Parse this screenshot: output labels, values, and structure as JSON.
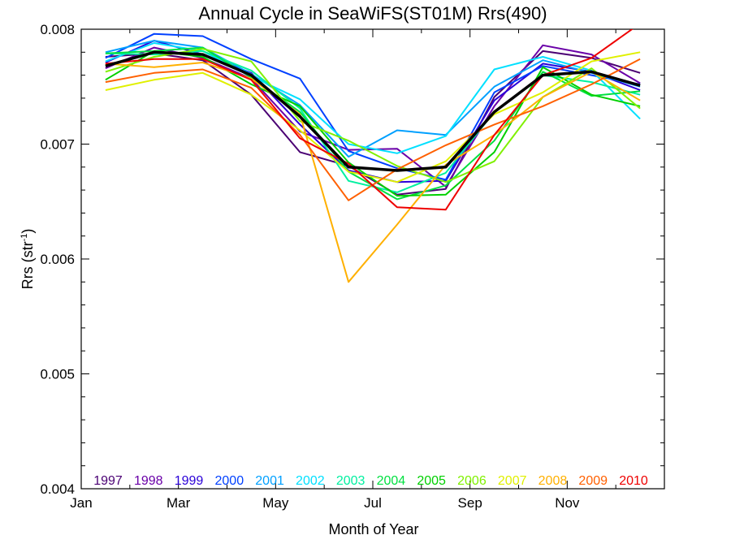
{
  "chart_data": {
    "type": "line",
    "title": "Annual Cycle in SeaWiFS(ST01M) Rrs(490)",
    "xlabel": "Month of Year",
    "ylabel_main": "Rrs (str",
    "ylabel_sup": "-1",
    "ylabel_close": ")",
    "xlim": [
      0,
      12
    ],
    "ylim": [
      0.004,
      0.008
    ],
    "x": [
      0.5,
      1.5,
      2.5,
      3.5,
      4.5,
      5.5,
      6.5,
      7.5,
      8.5,
      9.5,
      10.5,
      11.5
    ],
    "x_ticks": [
      {
        "value": 0,
        "label": "Jan"
      },
      {
        "value": 2,
        "label": "Mar"
      },
      {
        "value": 4,
        "label": "May"
      },
      {
        "value": 6,
        "label": "Jul"
      },
      {
        "value": 8,
        "label": "Sep"
      },
      {
        "value": 10,
        "label": "Nov"
      }
    ],
    "y_ticks": [
      {
        "value": 0.004,
        "label": "0.004"
      },
      {
        "value": 0.005,
        "label": "0.005"
      },
      {
        "value": 0.006,
        "label": "0.006"
      },
      {
        "value": 0.007,
        "label": "0.007"
      },
      {
        "value": 0.008,
        "label": "0.008"
      }
    ],
    "legend_position": "bottom",
    "series": [
      {
        "name": "1997",
        "color": "#4a0073",
        "values": [
          0.00776,
          0.00779,
          0.00773,
          0.00743,
          0.00693,
          0.00681,
          0.00656,
          0.00661,
          0.00741,
          0.00781,
          0.00775,
          0.00762
        ]
      },
      {
        "name": "1998",
        "color": "#6a00a8",
        "values": [
          0.00766,
          0.00784,
          0.00775,
          0.00757,
          0.00711,
          0.00695,
          0.00696,
          0.00663,
          0.00733,
          0.00786,
          0.00778,
          0.00753
        ]
      },
      {
        "name": "1999",
        "color": "#2a00d8",
        "values": [
          0.00771,
          0.0079,
          0.00778,
          0.00762,
          0.00717,
          0.00677,
          0.00667,
          0.00668,
          0.00738,
          0.0077,
          0.00763,
          0.00747
        ]
      },
      {
        "name": "2000",
        "color": "#0040ff",
        "values": [
          0.00775,
          0.00796,
          0.00794,
          0.00774,
          0.00757,
          0.00694,
          0.00679,
          0.00669,
          0.00745,
          0.00768,
          0.0076,
          0.00752
        ]
      },
      {
        "name": "2001",
        "color": "#00a0ff",
        "values": [
          0.0078,
          0.0079,
          0.00784,
          0.00761,
          0.00734,
          0.00689,
          0.00712,
          0.00708,
          0.0075,
          0.00773,
          0.00762,
          0.0075
        ]
      },
      {
        "name": "2002",
        "color": "#00e0ff",
        "values": [
          0.00772,
          0.00788,
          0.00781,
          0.00759,
          0.00739,
          0.007,
          0.00692,
          0.00707,
          0.00765,
          0.00776,
          0.00764,
          0.00722
        ]
      },
      {
        "name": "2003",
        "color": "#00f0a0",
        "values": [
          0.00779,
          0.00778,
          0.00781,
          0.00764,
          0.00731,
          0.00668,
          0.00658,
          0.00675,
          0.00728,
          0.0076,
          0.00754,
          0.00743
        ]
      },
      {
        "name": "2004",
        "color": "#00e040",
        "values": [
          0.00779,
          0.00781,
          0.00784,
          0.00758,
          0.00728,
          0.00676,
          0.00652,
          0.00664,
          0.00703,
          0.00763,
          0.00742,
          0.00746
        ]
      },
      {
        "name": "2005",
        "color": "#00d000",
        "values": [
          0.00756,
          0.00781,
          0.00776,
          0.00752,
          0.00733,
          0.00684,
          0.00655,
          0.00656,
          0.00693,
          0.00767,
          0.00743,
          0.00733
        ]
      },
      {
        "name": "2006",
        "color": "#80f000",
        "values": [
          0.00763,
          0.00776,
          0.00783,
          0.00772,
          0.0072,
          0.00703,
          0.00681,
          0.00667,
          0.00685,
          0.00741,
          0.00766,
          0.00731
        ]
      },
      {
        "name": "2007",
        "color": "#e0f000",
        "values": [
          0.00747,
          0.00756,
          0.00762,
          0.00743,
          0.00712,
          0.00676,
          0.00667,
          0.00685,
          0.00726,
          0.00745,
          0.00772,
          0.0078
        ]
      },
      {
        "name": "2008",
        "color": "#ffb000",
        "values": [
          0.0077,
          0.00767,
          0.00771,
          0.00757,
          0.00726,
          0.0058,
          0.0063,
          0.00682,
          0.00708,
          0.00741,
          0.00763,
          0.00738
        ]
      },
      {
        "name": "2009",
        "color": "#ff6000",
        "values": [
          0.00754,
          0.00762,
          0.00765,
          0.00749,
          0.00708,
          0.00651,
          0.00678,
          0.00699,
          0.00717,
          0.00733,
          0.00752,
          0.00774
        ]
      },
      {
        "name": "2010",
        "color": "#ee0000",
        "values": [
          0.0077,
          0.00774,
          0.00774,
          0.00756,
          0.00705,
          0.00683,
          0.00645,
          0.00643,
          0.00708,
          0.0076,
          0.00775,
          0.00805
        ]
      }
    ],
    "mean_series": {
      "color": "#000000",
      "values": [
        0.00768,
        0.0078,
        0.00778,
        0.0076,
        0.00724,
        0.0068,
        0.00677,
        0.0068,
        0.00728,
        0.0076,
        0.00763,
        0.00751
      ]
    }
  }
}
